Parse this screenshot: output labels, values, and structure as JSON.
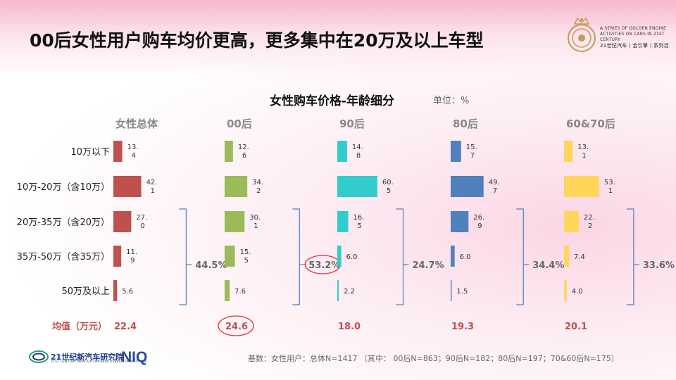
{
  "header": {
    "title": "00后女性用户购车均价更高，更多集中在20万及以上车型",
    "brand_line1": "A SERIES OF GOLDEN ENGINE",
    "brand_line2": "ACTIVITIES ON CARS IN 21ST CENTURY",
    "brand_line3": "21世纪汽车 | 金引擎 | 系列活"
  },
  "footer": {
    "note": "基数：女性用户：总体N=1417 （其中： 00后N=863；90后N=182；80后N=197；70&60后N=175）",
    "institute": "21世纪新汽车研究院",
    "institute_sub": "21ST CENTURY NEW AUTOMOBILE RESEARCH INSTITUTE",
    "partner": "NIQ"
  },
  "chart_data": {
    "type": "bar",
    "orientation": "horizontal",
    "title": "女性购车价格-年龄细分",
    "unit_label": "单位：%",
    "categories": [
      "10万以下",
      "10万-20万（含10万）",
      "20万-35万（含20万）",
      "35万-50万（含35万）",
      "50万及以上"
    ],
    "series": [
      {
        "name": "女性总体",
        "color": "#c0504d",
        "values": [
          13.4,
          42.1,
          27.0,
          11.9,
          5.6
        ],
        "labels": [
          "13.\n4",
          "42.\n1",
          "27.\n0",
          "11.\n9",
          "5.6"
        ],
        "bracket_total": "44.5%",
        "mean": "22.4"
      },
      {
        "name": "00后",
        "color": "#9bbb59",
        "values": [
          12.6,
          34.2,
          30.1,
          15.5,
          7.6
        ],
        "labels": [
          "12.\n6",
          "34.\n2",
          "30.\n1",
          "15.\n5",
          "7.6"
        ],
        "bracket_total": "53.2%",
        "mean": "24.6",
        "highlight": true
      },
      {
        "name": "90后",
        "color": "#33cccc",
        "values": [
          14.8,
          60.5,
          16.5,
          6.0,
          2.2
        ],
        "labels": [
          "14.\n8",
          "60.\n5",
          "16.\n5",
          "6.0",
          "2.2"
        ],
        "bracket_total": "24.7%",
        "mean": "18.0"
      },
      {
        "name": "80后",
        "color": "#4f81bd",
        "values": [
          15.7,
          49.7,
          26.9,
          6.0,
          1.5
        ],
        "labels": [
          "15.\n7",
          "49.\n7",
          "26.\n9",
          "6.0",
          "1.5"
        ],
        "bracket_total": "34.4%",
        "mean": "19.3"
      },
      {
        "name": "60&70后",
        "color": "#ffd659",
        "values": [
          13.1,
          53.1,
          22.2,
          7.4,
          4.0
        ],
        "labels": [
          "13.\n1",
          "53.\n1",
          "22.\n2",
          "7.4",
          "4.0"
        ],
        "bracket_total": "33.6%",
        "mean": "20.1"
      }
    ],
    "mean_label": "均值（万元）",
    "mean_color": "#c0504d",
    "bracket_color": "#4f81bd",
    "highlight_color": "#e0303a"
  }
}
